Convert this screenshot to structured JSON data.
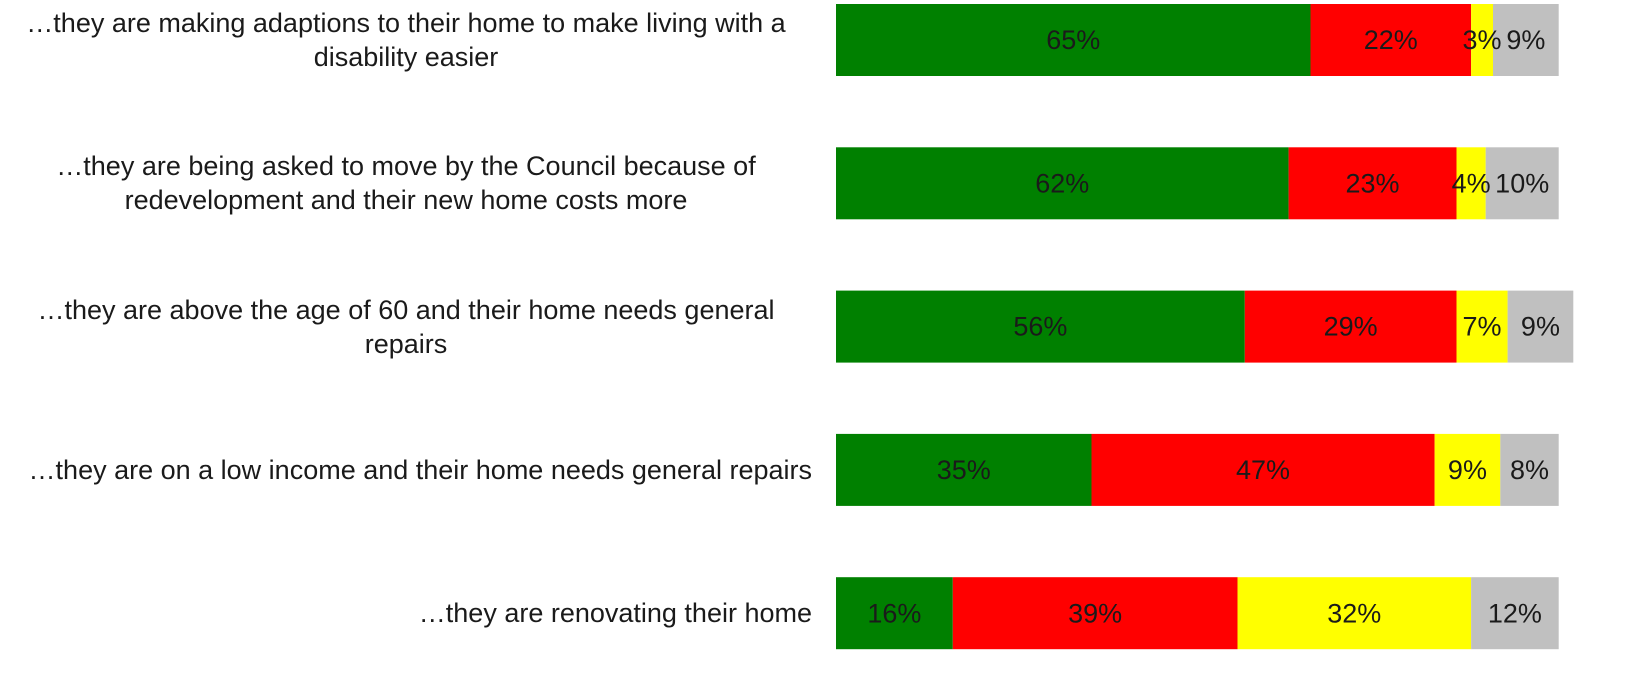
{
  "chart_data": {
    "type": "stacked-bar-horizontal",
    "categories": [
      "…they are making adaptions to their home to make living with a disability easier",
      "…they are being asked to move by the Council because of redevelopment and their new home costs more",
      "…they are above the age of 60 and their home needs general repairs",
      "…they are on a low income and their home needs general repairs",
      "…they are renovating their home"
    ],
    "series": [
      {
        "color": "#008000",
        "values": [
          65,
          62,
          56,
          35,
          16
        ],
        "value_labels": [
          "65%",
          "62%",
          "56%",
          "35%",
          "16%"
        ]
      },
      {
        "color": "#ff0000",
        "values": [
          22,
          23,
          29,
          47,
          39
        ],
        "value_labels": [
          "22%",
          "23%",
          "29%",
          "47%",
          "39%"
        ]
      },
      {
        "color": "#ffff00",
        "values": [
          3,
          4,
          7,
          9,
          32
        ],
        "value_labels": [
          "3%",
          "4%",
          "7%",
          "9%",
          "32%"
        ]
      },
      {
        "color": "#c0c0c0",
        "values": [
          9,
          10,
          9,
          8,
          12
        ],
        "value_labels": [
          "9%",
          "10%",
          "9%",
          "8%",
          "12%"
        ]
      }
    ]
  }
}
